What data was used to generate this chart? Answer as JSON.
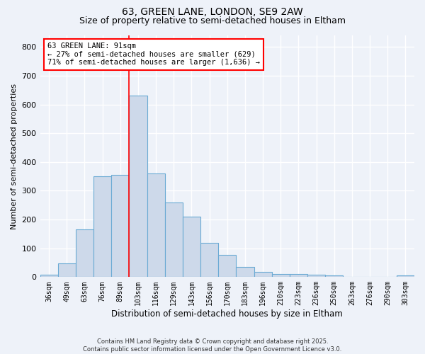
{
  "title1": "63, GREEN LANE, LONDON, SE9 2AW",
  "title2": "Size of property relative to semi-detached houses in Eltham",
  "xlabel": "Distribution of semi-detached houses by size in Eltham",
  "ylabel": "Number of semi-detached properties",
  "categories": [
    "36sqm",
    "49sqm",
    "63sqm",
    "76sqm",
    "89sqm",
    "103sqm",
    "116sqm",
    "129sqm",
    "143sqm",
    "156sqm",
    "170sqm",
    "183sqm",
    "196sqm",
    "210sqm",
    "223sqm",
    "236sqm",
    "250sqm",
    "263sqm",
    "276sqm",
    "290sqm",
    "303sqm"
  ],
  "values": [
    8,
    48,
    165,
    350,
    355,
    630,
    360,
    258,
    210,
    120,
    78,
    35,
    18,
    10,
    10,
    8,
    5,
    0,
    0,
    0,
    5
  ],
  "bar_color": "#cdd9ea",
  "bar_edge_color": "#6aaad4",
  "red_line_index": 5,
  "annotation_line1": "63 GREEN LANE: 91sqm",
  "annotation_line2": "← 27% of semi-detached houses are smaller (629)",
  "annotation_line3": "71% of semi-detached houses are larger (1,636) →",
  "ylim": [
    0,
    840
  ],
  "yticks": [
    0,
    100,
    200,
    300,
    400,
    500,
    600,
    700,
    800
  ],
  "footer1": "Contains HM Land Registry data © Crown copyright and database right 2025.",
  "footer2": "Contains public sector information licensed under the Open Government Licence v3.0.",
  "bg_color": "#eef2f9",
  "grid_color": "#ffffff",
  "title_fontsize": 10,
  "subtitle_fontsize": 9
}
